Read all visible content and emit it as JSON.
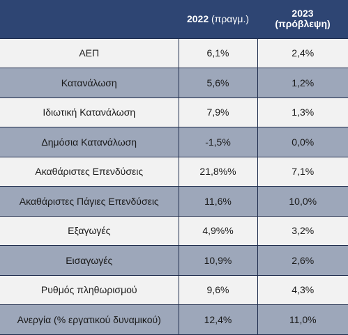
{
  "header": {
    "col1": "",
    "col2_year": "2022",
    "col2_note": "(πραγμ.)",
    "col3_year": "2023",
    "col3_note": "(πρόβλεψη)"
  },
  "rows": [
    {
      "label": "ΑΕΠ",
      "v2022": "6,1%",
      "v2023": "2,4%"
    },
    {
      "label": "Κατανάλωση",
      "v2022": "5,6%",
      "v2023": "1,2%"
    },
    {
      "label": "Ιδιωτική Κατανάλωση",
      "v2022": "7,9%",
      "v2023": "1,3%"
    },
    {
      "label": "Δημόσια Κατανάλωση",
      "v2022": "-1,5%",
      "v2023": "0,0%"
    },
    {
      "label": "Ακαθάριστες Επενδύσεις",
      "v2022": "21,8%%",
      "v2023": "7,1%"
    },
    {
      "label": "Ακαθάριστες Πάγιες Επενδύσεις",
      "v2022": "11,6%",
      "v2023": "10,0%"
    },
    {
      "label": "Εξαγωγές",
      "v2022": "4,9%%",
      "v2023": "3,2%"
    },
    {
      "label": "Εισαγωγές",
      "v2022": "10,9%",
      "v2023": "2,6%"
    },
    {
      "label": "Ρυθμός πληθωρισμού",
      "v2022": "9,6%",
      "v2023": "4,3%"
    },
    {
      "label": "Ανεργία (% εργατικού δυναμικού)",
      "v2022": "12,4%",
      "v2023": "11,0%"
    }
  ],
  "colors": {
    "header_bg": "#2e4573",
    "row_light": "#f2f2f2",
    "row_dark": "#9da7ba",
    "border": "#1f2d4d"
  }
}
